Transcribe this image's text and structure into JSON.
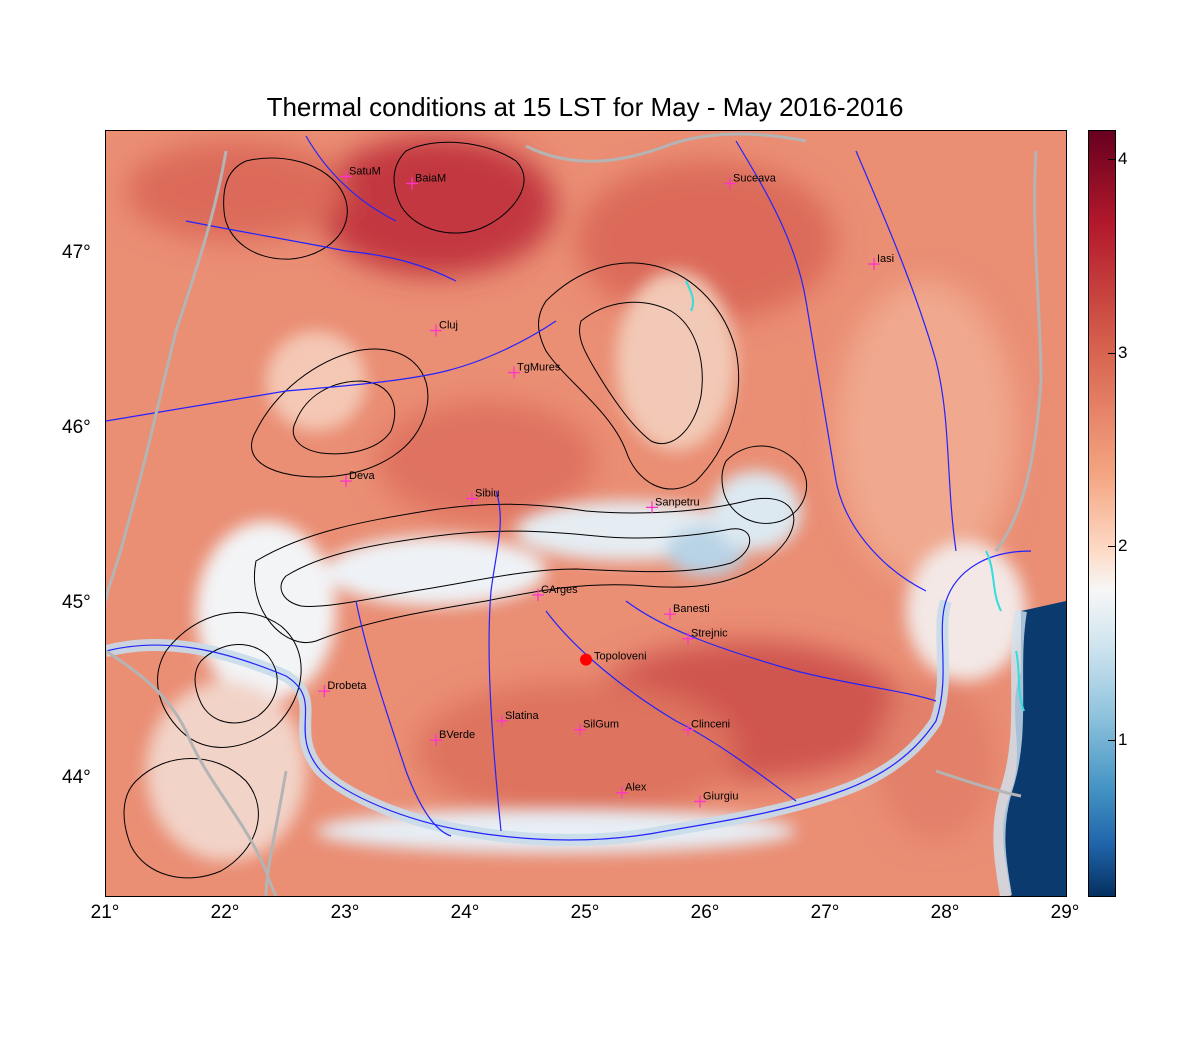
{
  "title": "Thermal conditions at 15 LST for May - May  2016-2016",
  "x_ticks": [
    "21°",
    "22°",
    "23°",
    "24°",
    "25°",
    "26°",
    "27°",
    "28°",
    "29°"
  ],
  "y_ticks": [
    "47°",
    "46°",
    "45°",
    "44°"
  ],
  "colorbar": {
    "ticks": [
      "4",
      "3",
      "2",
      "1"
    ],
    "colors": {
      "high": "#67001f",
      "mid": "#f7f7f7",
      "low": "#053061"
    }
  },
  "extent": {
    "lon": [
      21,
      29
    ],
    "lat": [
      43.33,
      47.7
    ]
  },
  "marker": {
    "name": "Topoloveni",
    "lon": 25.0,
    "lat": 44.68,
    "color": "#ff0000"
  },
  "cities": [
    {
      "name": "SatuM",
      "lon": 23.0,
      "lat": 47.44
    },
    {
      "name": "BaiaM",
      "lon": 23.55,
      "lat": 47.4
    },
    {
      "name": "Suceava",
      "lon": 26.2,
      "lat": 47.4
    },
    {
      "name": "Iasi",
      "lon": 27.4,
      "lat": 46.94
    },
    {
      "name": "Cluj",
      "lon": 23.75,
      "lat": 46.56
    },
    {
      "name": "TgMures",
      "lon": 24.4,
      "lat": 46.32
    },
    {
      "name": "Deva",
      "lon": 23.0,
      "lat": 45.7
    },
    {
      "name": "Sibiu",
      "lon": 24.05,
      "lat": 45.6
    },
    {
      "name": "Sanpetru",
      "lon": 25.55,
      "lat": 45.55
    },
    {
      "name": "CArges",
      "lon": 24.6,
      "lat": 45.05
    },
    {
      "name": "Banesti",
      "lon": 25.7,
      "lat": 44.94
    },
    {
      "name": "Strejnic",
      "lon": 25.85,
      "lat": 44.8
    },
    {
      "name": "Drobeta",
      "lon": 22.82,
      "lat": 44.5
    },
    {
      "name": "Slatina",
      "lon": 24.3,
      "lat": 44.33
    },
    {
      "name": "SilGum",
      "lon": 24.95,
      "lat": 44.28
    },
    {
      "name": "Clinceni",
      "lon": 25.85,
      "lat": 44.28
    },
    {
      "name": "BVerde",
      "lon": 23.75,
      "lat": 44.22
    },
    {
      "name": "Alex",
      "lon": 25.3,
      "lat": 43.92
    },
    {
      "name": "Giurgiu",
      "lon": 25.95,
      "lat": 43.87
    }
  ],
  "colors": {
    "warm": "#e8826a",
    "hot": "#c9454a",
    "cool": "#e8eef4",
    "sea": "#0b3a6e",
    "river": "#2323ff",
    "border": "#b4b4b4",
    "contour": "#000000",
    "city_marker": "#ff33cc",
    "lake": "#33dddd"
  }
}
